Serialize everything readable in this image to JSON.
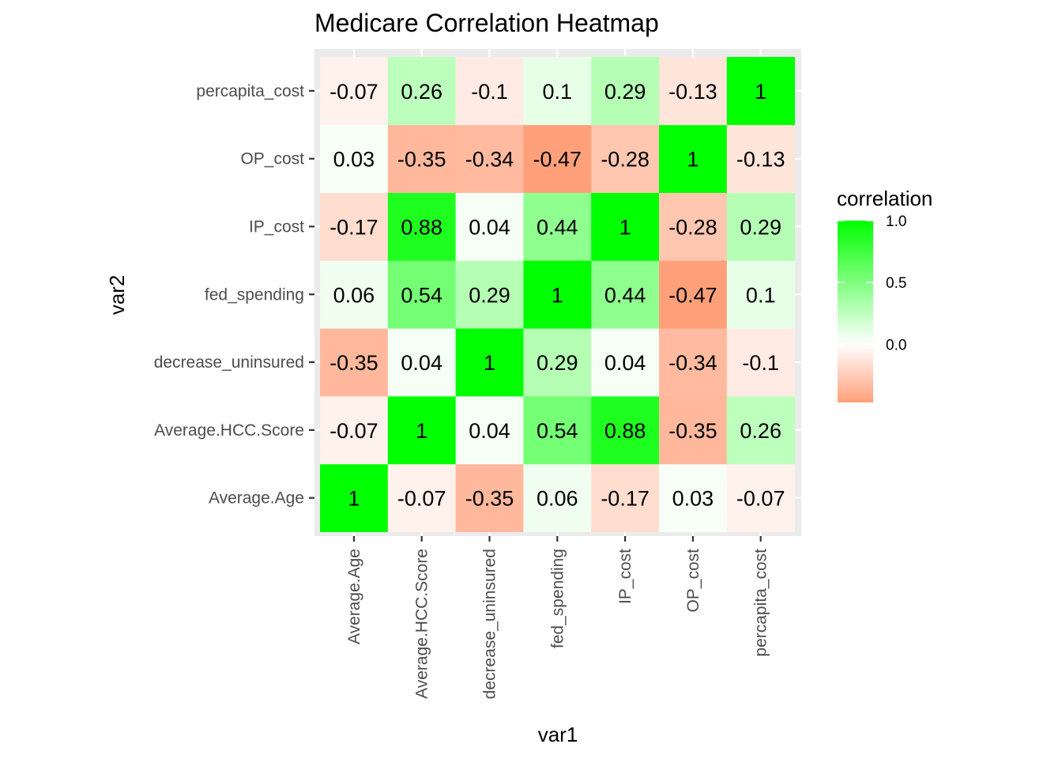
{
  "chart_data": {
    "type": "heatmap",
    "title": "Medicare Correlation Heatmap",
    "xlabel": "var1",
    "ylabel": "var2",
    "x_categories": [
      "Average.Age",
      "Average.HCC.Score",
      "decrease_uninsured",
      "fed_spending",
      "IP_cost",
      "OP_cost",
      "percapita_cost"
    ],
    "y_categories": [
      "Average.Age",
      "Average.HCC.Score",
      "decrease_uninsured",
      "fed_spending",
      "IP_cost",
      "OP_cost",
      "percapita_cost"
    ],
    "matrix": [
      [
        1,
        -0.07,
        -0.35,
        0.06,
        -0.17,
        0.03,
        -0.07
      ],
      [
        -0.07,
        1,
        0.04,
        0.54,
        0.88,
        -0.35,
        0.26
      ],
      [
        -0.35,
        0.04,
        1,
        0.29,
        0.04,
        -0.34,
        -0.1
      ],
      [
        0.06,
        0.54,
        0.29,
        1,
        0.44,
        -0.47,
        0.1
      ],
      [
        -0.17,
        0.88,
        0.04,
        0.44,
        1,
        -0.28,
        0.29
      ],
      [
        0.03,
        -0.35,
        -0.34,
        -0.47,
        -0.28,
        1,
        -0.13
      ],
      [
        -0.07,
        0.26,
        -0.1,
        0.1,
        0.29,
        -0.13,
        1
      ]
    ],
    "colors": {
      "low": "#FFA07A",
      "mid": "#FFFFFF",
      "high": "#00FF00",
      "panel_bg": "#EBEBEB",
      "grid": "#FFFFFF"
    },
    "legend": {
      "title": "correlation",
      "placement": "right",
      "range": [
        -0.47,
        1.0
      ],
      "breaks": [
        1.0,
        0.5,
        0.0
      ],
      "break_labels": [
        "1.0",
        "0.5",
        "0.0"
      ]
    }
  }
}
